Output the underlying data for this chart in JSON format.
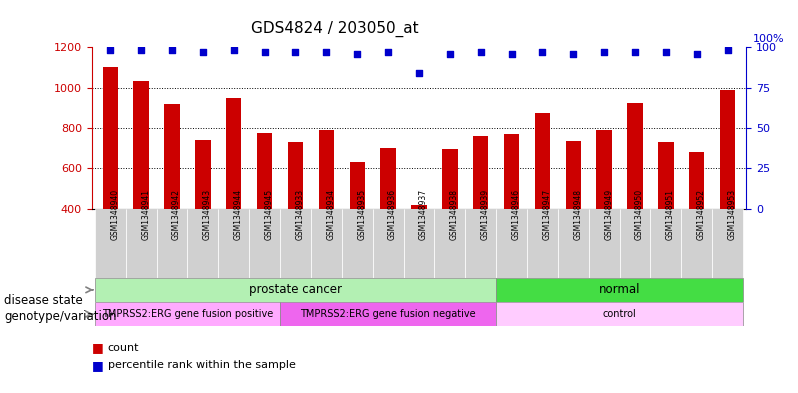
{
  "title": "GDS4824 / 203050_at",
  "samples": [
    "GSM1348940",
    "GSM1348941",
    "GSM1348942",
    "GSM1348943",
    "GSM1348944",
    "GSM1348945",
    "GSM1348933",
    "GSM1348934",
    "GSM1348935",
    "GSM1348936",
    "GSM1348937",
    "GSM1348938",
    "GSM1348939",
    "GSM1348946",
    "GSM1348947",
    "GSM1348948",
    "GSM1348949",
    "GSM1348950",
    "GSM1348951",
    "GSM1348952",
    "GSM1348953"
  ],
  "counts": [
    1100,
    1030,
    920,
    740,
    950,
    775,
    730,
    790,
    630,
    700,
    420,
    695,
    760,
    770,
    875,
    735,
    790,
    925,
    730,
    680,
    990
  ],
  "percentile_ranks": [
    98,
    98,
    98,
    97,
    98,
    97,
    97,
    97,
    96,
    97,
    84,
    96,
    97,
    96,
    97,
    96,
    97,
    97,
    97,
    96,
    98
  ],
  "bar_color": "#cc0000",
  "dot_color": "#0000cc",
  "ylim_left": [
    400,
    1200
  ],
  "ylim_right": [
    0,
    100
  ],
  "yticks_left": [
    400,
    600,
    800,
    1000,
    1200
  ],
  "yticks_right": [
    0,
    25,
    50,
    75,
    100
  ],
  "grid_values": [
    600,
    800,
    1000
  ],
  "groups": {
    "disease_state": [
      {
        "label": "prostate cancer",
        "start": 0,
        "end": 13,
        "color": "#b3f0b3"
      },
      {
        "label": "normal",
        "start": 13,
        "end": 21,
        "color": "#44dd44"
      }
    ],
    "genotype_variation": [
      {
        "label": "TMPRSS2:ERG gene fusion positive",
        "start": 0,
        "end": 6,
        "color": "#ffaaff"
      },
      {
        "label": "TMPRSS2:ERG gene fusion negative",
        "start": 6,
        "end": 13,
        "color": "#ee66ee"
      },
      {
        "label": "control",
        "start": 13,
        "end": 21,
        "color": "#ffccff"
      }
    ]
  },
  "legend_items": [
    {
      "label": "count",
      "color": "#cc0000"
    },
    {
      "label": "percentile rank within the sample",
      "color": "#0000cc"
    }
  ],
  "background_color": "#ffffff",
  "tick_color_left": "#cc0000",
  "tick_color_right": "#0000cc",
  "right_axis_label": "100%"
}
